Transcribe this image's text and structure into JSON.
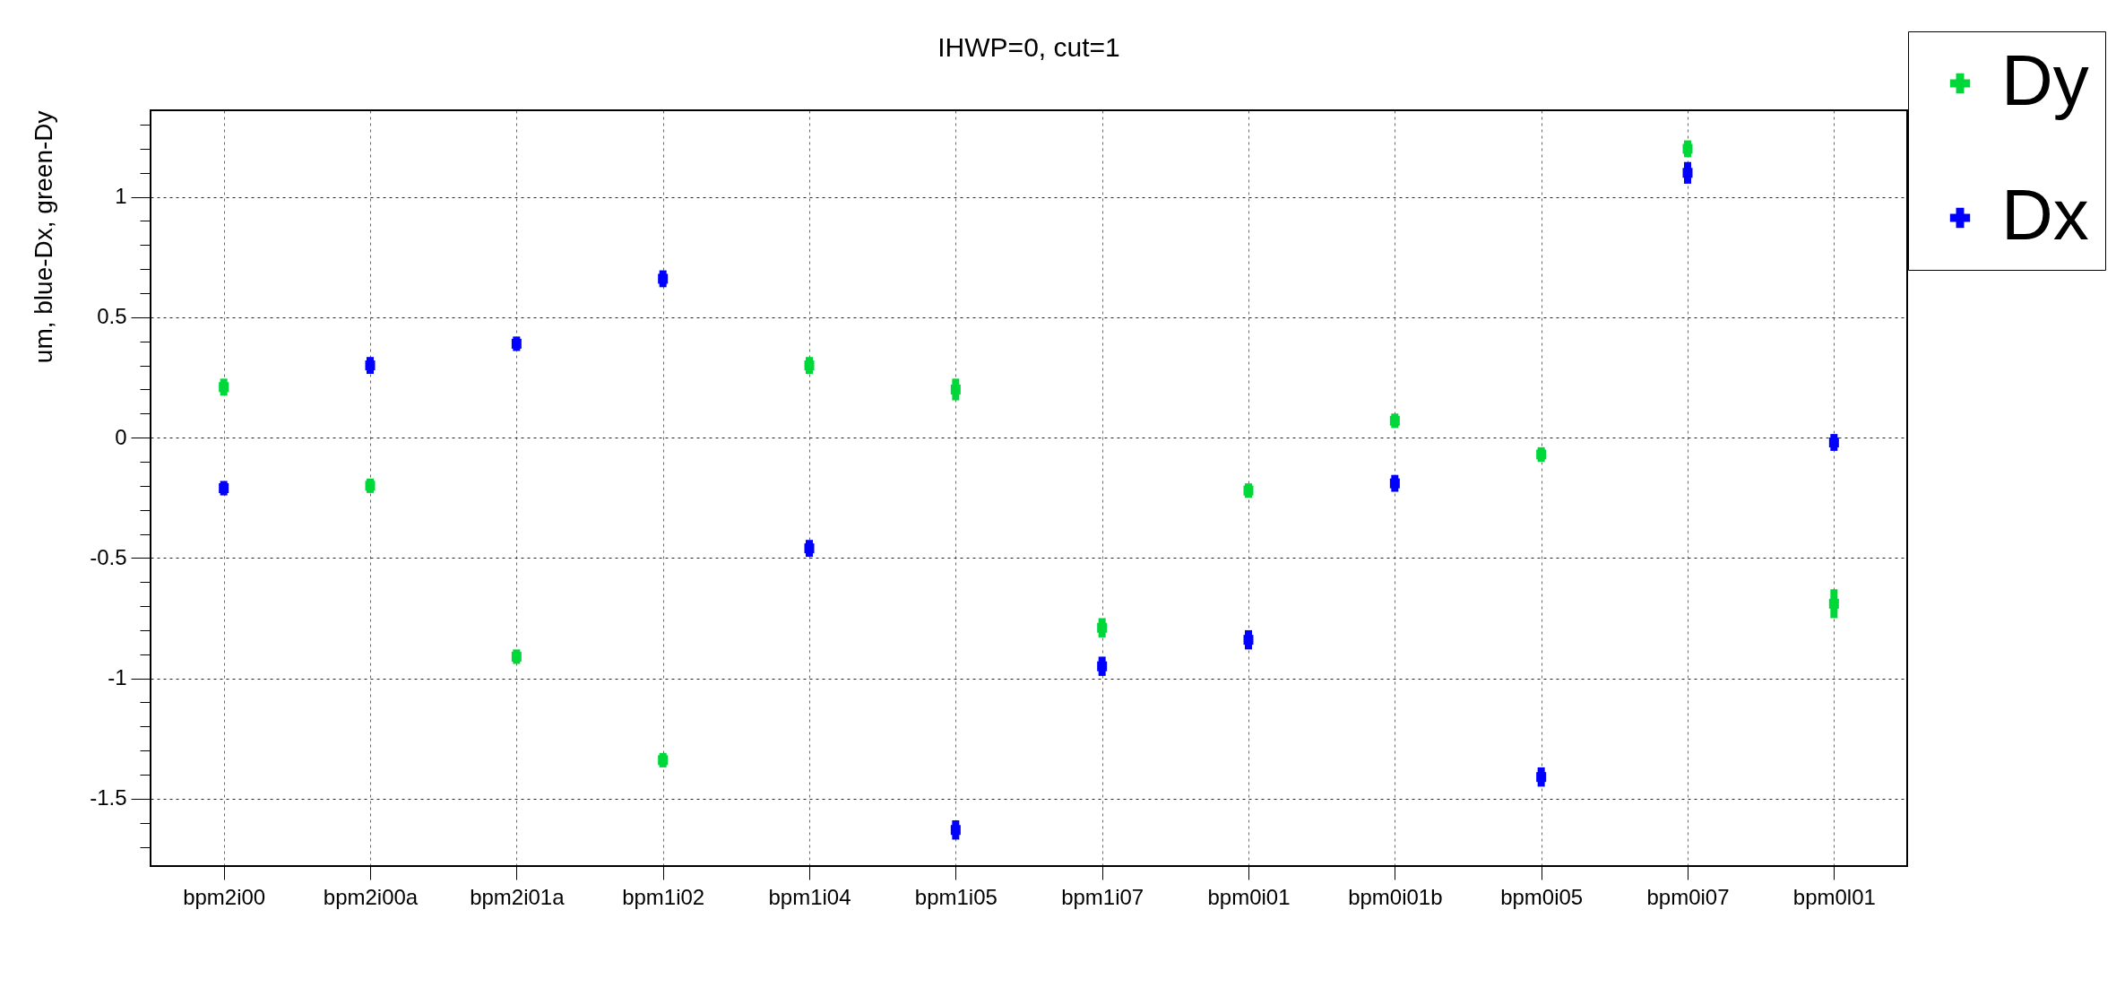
{
  "chart_data": {
    "type": "scatter",
    "title": "IHWP=0, cut=1",
    "ylabel": "um, blue-Dx, green-Dy",
    "categories": [
      "bpm2i00",
      "bpm2i00a",
      "bpm2i01a",
      "bpm1i02",
      "bpm1i04",
      "bpm1i05",
      "bpm1i07",
      "bpm0i01",
      "bpm0i01b",
      "bpm0i05",
      "bpm0i07",
      "bpm0l01"
    ],
    "series": [
      {
        "name": "Dy",
        "color": "#00d83a",
        "values": [
          0.21,
          -0.2,
          -0.91,
          -1.34,
          0.3,
          0.2,
          -0.79,
          -0.22,
          0.07,
          -0.07,
          1.2,
          -0.69
        ],
        "errors": [
          0.035,
          0.03,
          0.03,
          0.03,
          0.035,
          0.045,
          0.04,
          0.03,
          0.03,
          0.03,
          0.035,
          0.06
        ]
      },
      {
        "name": "Dx",
        "color": "#0000ff",
        "values": [
          -0.21,
          0.3,
          0.39,
          0.66,
          -0.46,
          -1.63,
          -0.95,
          -0.84,
          -0.19,
          -1.41,
          1.1,
          -0.02
        ],
        "errors": [
          0.03,
          0.035,
          0.03,
          0.035,
          0.035,
          0.04,
          0.04,
          0.04,
          0.035,
          0.04,
          0.045,
          0.035
        ]
      }
    ],
    "ylim": [
      -1.78,
      1.36
    ],
    "yticks": [
      {
        "value": -1.7,
        "label": null
      },
      {
        "value": -1.6,
        "label": null
      },
      -1.5,
      {
        "value": -1.4,
        "label": null
      },
      {
        "value": -1.3,
        "label": null
      },
      {
        "value": -1.2,
        "label": null
      },
      {
        "value": -1.1,
        "label": null
      },
      -1,
      {
        "value": -0.9,
        "label": null
      },
      {
        "value": -0.8,
        "label": null
      },
      {
        "value": -0.7,
        "label": null
      },
      {
        "value": -0.6,
        "label": null
      },
      -0.5,
      {
        "value": -0.4,
        "label": null
      },
      {
        "value": -0.3,
        "label": null
      },
      {
        "value": -0.2,
        "label": null
      },
      {
        "value": -0.1,
        "label": null
      },
      0,
      {
        "value": 0.1,
        "label": null
      },
      {
        "value": 0.2,
        "label": null
      },
      {
        "value": 0.3,
        "label": null
      },
      {
        "value": 0.4,
        "label": null
      },
      0.5,
      {
        "value": 0.6,
        "label": null
      },
      {
        "value": 0.7,
        "label": null
      },
      {
        "value": 0.8,
        "label": null
      },
      {
        "value": 0.9,
        "label": null
      },
      1,
      {
        "value": 1.1,
        "label": null
      },
      {
        "value": 1.2,
        "label": null
      },
      {
        "value": 1.3,
        "label": null
      }
    ],
    "grid": true,
    "legend": "top right",
    "marker": "square"
  }
}
